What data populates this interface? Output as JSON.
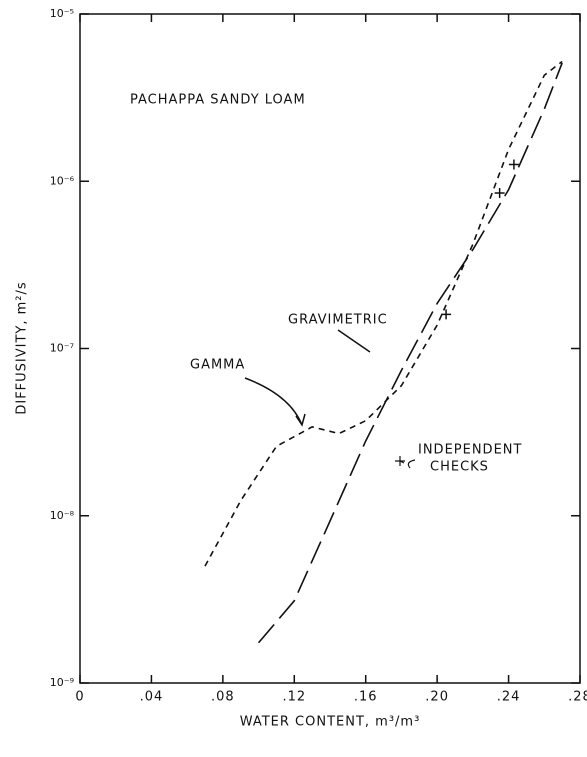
{
  "chart_data": {
    "type": "line",
    "log_y": true,
    "xlabel": "WATER CONTENT, m³/m³",
    "ylabel": "DIFFUSIVITY, m²/s",
    "xlim": [
      0,
      0.28
    ],
    "xticks": [
      0,
      {
        "value": 0.04,
        "label": ".04"
      },
      {
        "value": 0.08,
        "label": ".08"
      },
      {
        "value": 0.12,
        "label": ".12"
      },
      {
        "value": 0.16,
        "label": ".16"
      },
      {
        "value": 0.2,
        "label": ".20"
      },
      {
        "value": 0.24,
        "label": ".24"
      },
      {
        "value": 0.28,
        "label": ".28"
      }
    ],
    "ylim": [
      1e-09,
      1e-05
    ],
    "yticks": [
      {
        "value": 1e-09,
        "label": "10⁻⁹"
      },
      {
        "value": 1e-08,
        "label": "10⁻⁸"
      },
      {
        "value": 1e-07,
        "label": "10⁻⁷"
      },
      {
        "value": 1e-06,
        "label": "10⁻⁶"
      },
      {
        "value": 1e-05,
        "label": "10⁻⁵"
      }
    ],
    "annotations": [
      "PACHAPPA SANDY LOAM",
      "INDEPENDENT",
      "CHECKS"
    ],
    "series": [
      {
        "name": "GAMMA",
        "color": "#111",
        "style": "short-dash",
        "x": [
          0.07,
          0.09,
          0.11,
          0.13,
          0.145,
          0.16,
          0.18,
          0.2,
          0.22,
          0.24,
          0.26,
          0.27
        ],
        "values": [
          5e-09,
          1.23e-08,
          2.6e-08,
          3.4e-08,
          3.1e-08,
          3.7e-08,
          6e-08,
          1.38e-07,
          4.2e-07,
          1.55e-06,
          4.3e-06,
          5.2e-06
        ]
      },
      {
        "name": "GRAVIMETRIC",
        "color": "#111",
        "style": "long-dash",
        "x": [
          0.1,
          0.12,
          0.14,
          0.16,
          0.18,
          0.2,
          0.22,
          0.24,
          0.26,
          0.27
        ],
        "values": [
          1.74e-09,
          3.1e-09,
          9.3e-09,
          2.8e-08,
          7.4e-08,
          1.86e-07,
          3.9e-07,
          8.9e-07,
          2.7e-06,
          5.1e-06
        ]
      },
      {
        "color": "#111",
        "style": "plus",
        "x": [
          0.205,
          0.235,
          0.243
        ],
        "values": [
          1.6e-07,
          8.5e-07,
          1.26e-06
        ]
      }
    ]
  }
}
